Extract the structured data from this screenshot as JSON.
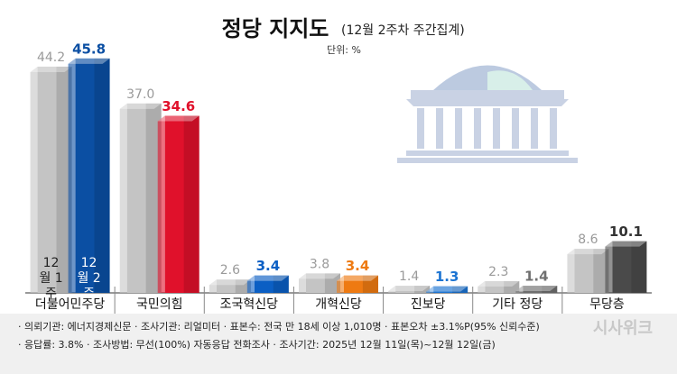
{
  "chart_data": {
    "type": "bar",
    "title": "정당 지지도",
    "subtitle": "(12월 2주차 주간집계)",
    "unit": "단위: %",
    "categories": [
      "더불어민주당",
      "국민의힘",
      "조국혁신당",
      "개혁신당",
      "진보당",
      "기타 정당",
      "무당층"
    ],
    "series": [
      {
        "name": "12월 1주",
        "color": "#c4c4c4",
        "label_color": "#9a9a9a",
        "values": [
          44.2,
          37.0,
          2.6,
          3.8,
          1.4,
          2.3,
          8.6
        ],
        "value_labels": [
          "44.2",
          "37.0",
          "2.6",
          "3.8",
          "1.4",
          "2.3",
          "8.6"
        ]
      },
      {
        "name": "12월 2주",
        "colors": [
          "#0b4fa3",
          "#e0112b",
          "#0b5fc4",
          "#ee7a12",
          "#1c74d2",
          "#6f6f6f",
          "#4a4a4a"
        ],
        "label_colors": [
          "#0b4fa3",
          "#e0112b",
          "#0b5fc4",
          "#ee7a12",
          "#1c74d2",
          "#6f6f6f",
          "#333333"
        ],
        "values": [
          45.8,
          34.6,
          3.4,
          3.4,
          1.3,
          1.4,
          10.1
        ],
        "value_labels": [
          "45.8",
          "34.6",
          "3.4",
          "3.4",
          "1.3",
          "1.4",
          "10.1"
        ]
      }
    ],
    "ylim": [
      0,
      50
    ],
    "notes": [
      "· 의뢰기관: 에너지경제신문 · 조사기관: 리얼미터 · 표본수: 전국 만 18세 이상 1,010명 · 표본오차 ±3.1%P(95% 신뢰수준)",
      "· 응답률: 3.8% · 조사방법: 무선(100%) 자동응답 전화조사 · 조사기간: 2025년 12월 11일(목)~12월 12일(금)"
    ],
    "logo": "시사위크"
  }
}
